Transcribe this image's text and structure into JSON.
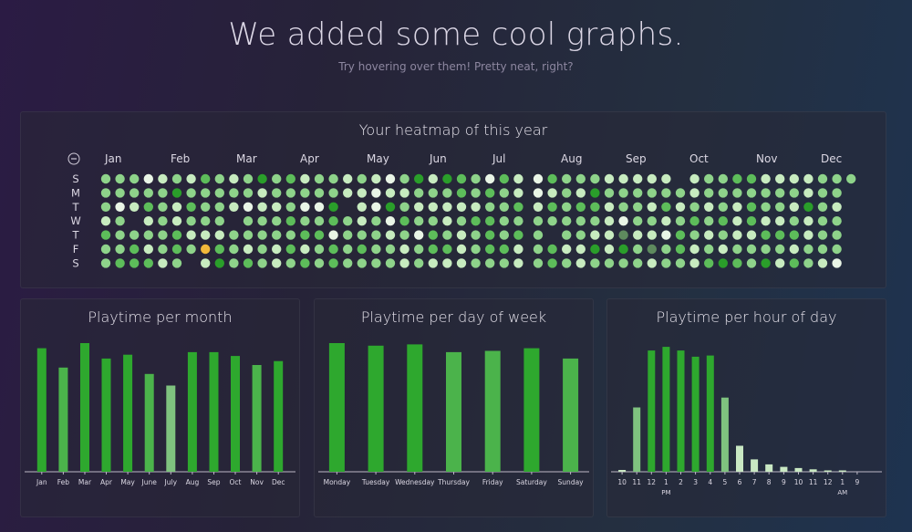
{
  "header": {
    "title": "We added some cool graphs.",
    "subtitle": "Try hovering over them! Pretty neat, right?"
  },
  "colors": {
    "heat_levels": [
      "#e9f5e6",
      "#c7ebbf",
      "#8ed38a",
      "#5dbd5a",
      "#2a9e2a"
    ],
    "heat_dim": "#5e8a5e",
    "heat_highlight": "#f2b73a",
    "bar_strong": "#2ea82e",
    "bar_medium": "#4bb34b",
    "bar_light": "#7fc27f",
    "bar_pale": "#c9e8c3"
  },
  "heatmap": {
    "title": "Your heatmap of this year",
    "control_icon": "minus-circle-icon",
    "day_labels": [
      "S",
      "M",
      "T",
      "W",
      "T",
      "F",
      "S"
    ],
    "months": [
      "Jan",
      "Feb",
      "Mar",
      "Apr",
      "May",
      "Jun",
      "Jul",
      "Aug",
      "Sep",
      "Oct",
      "Nov",
      "Dec"
    ]
  },
  "chart_data": [
    {
      "type": "bar",
      "title": "Playtime per month",
      "categories": [
        "Jan",
        "Feb",
        "Mar",
        "Apr",
        "May",
        "June",
        "July",
        "Aug",
        "Sep",
        "Oct",
        "Nov",
        "Dec"
      ],
      "values": [
        96,
        81,
        100,
        88,
        91,
        76,
        67,
        93,
        93,
        90,
        83,
        86
      ],
      "ylim": [
        0,
        100
      ]
    },
    {
      "type": "bar",
      "title": "Playtime per day of week",
      "categories": [
        "Monday",
        "Tuesday",
        "Wednesday",
        "Thursday",
        "Friday",
        "Saturday",
        "Sunday"
      ],
      "values": [
        100,
        98,
        99,
        93,
        94,
        96,
        88
      ],
      "ylim": [
        0,
        100
      ]
    },
    {
      "type": "bar",
      "title": "Playtime per hour of day",
      "categories": [
        "10",
        "11",
        "12",
        "1",
        "2",
        "3",
        "4",
        "5",
        "6",
        "7",
        "8",
        "9",
        "10",
        "11",
        "12",
        "1",
        "9"
      ],
      "sublabels": {
        "3": "PM",
        "15": "AM"
      },
      "values": [
        1.5,
        52,
        98,
        101,
        98,
        93,
        94,
        60,
        21,
        10,
        6,
        4,
        3,
        2,
        0.5,
        0.5,
        0
      ],
      "ylim": [
        0,
        104
      ]
    }
  ]
}
